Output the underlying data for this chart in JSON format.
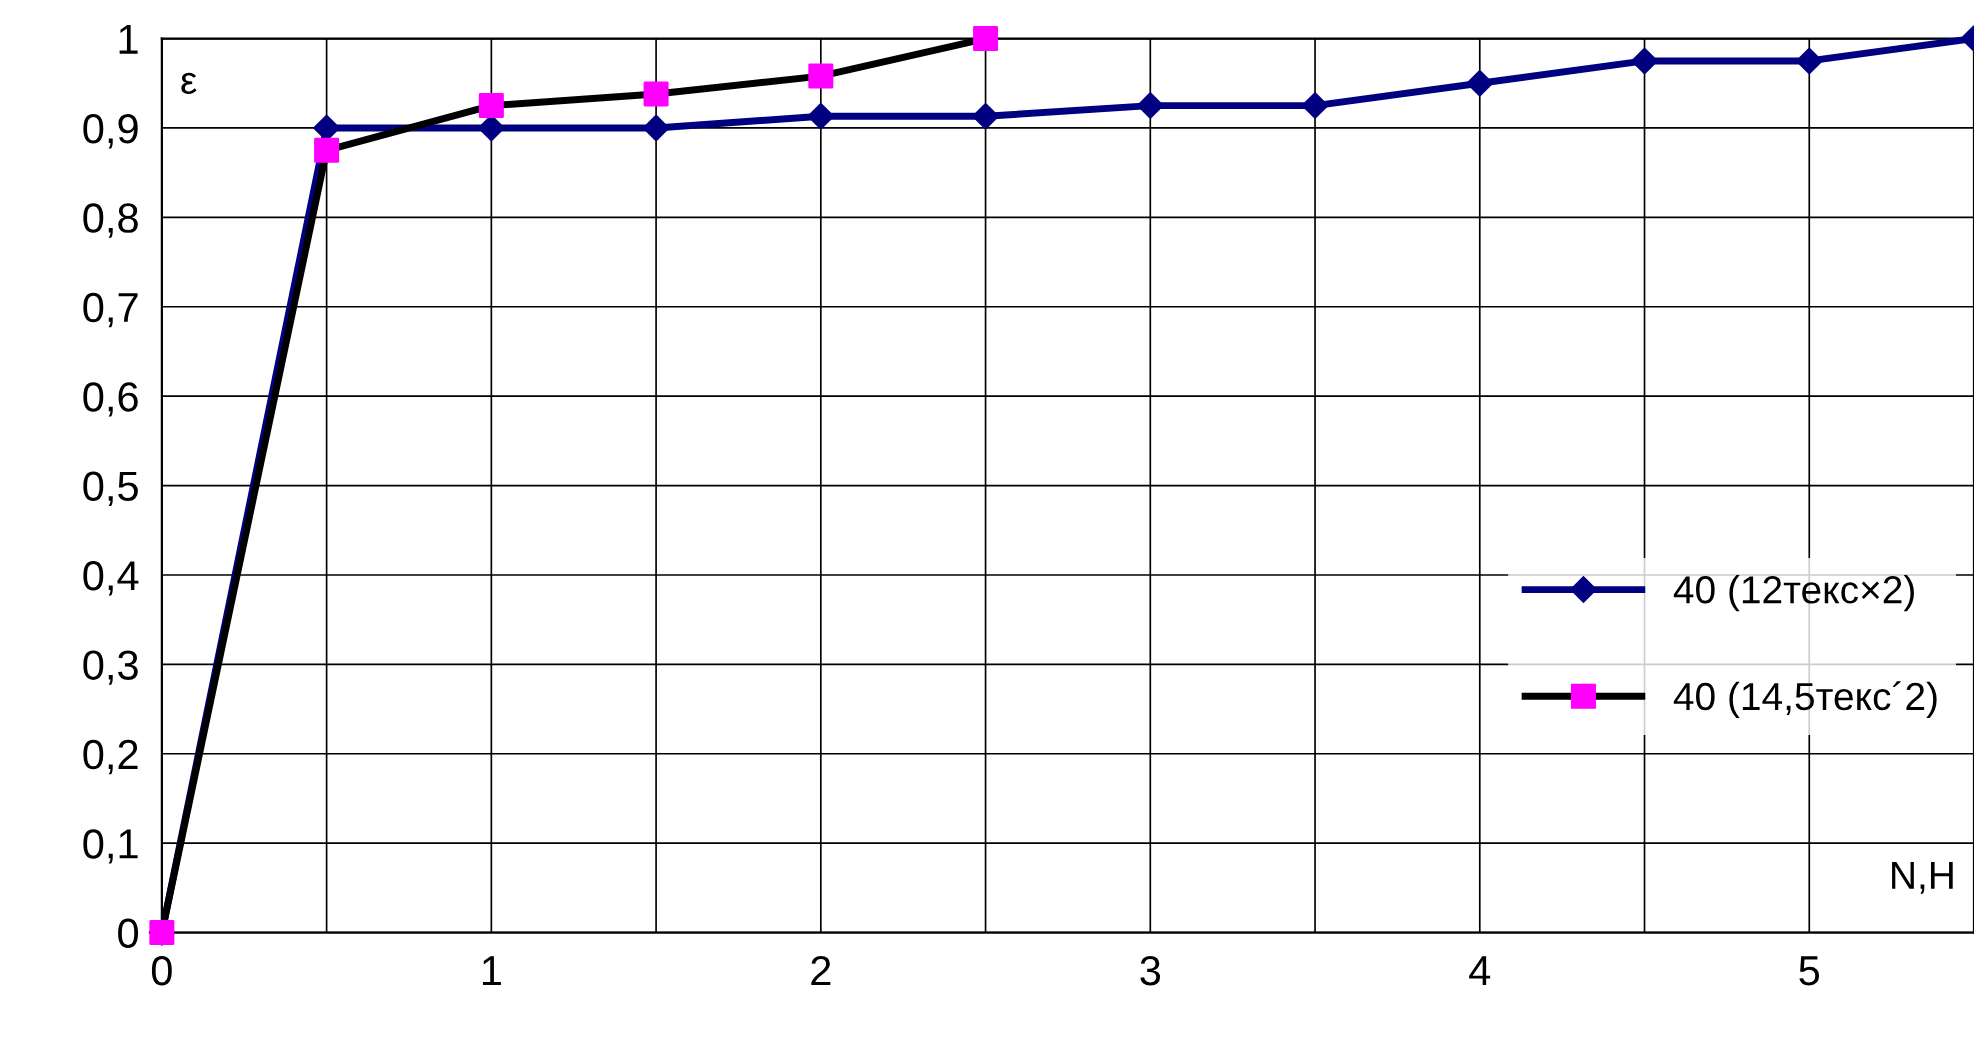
{
  "chart_data": {
    "type": "line",
    "xlabel": "N,H",
    "ylabel": "ε",
    "xlim": [
      0,
      5.5
    ],
    "ylim": [
      0,
      1
    ],
    "xticks": [
      0,
      {
        "value": 0.5,
        "label": null
      },
      1,
      {
        "value": 1.5,
        "label": null
      },
      2,
      {
        "value": 2.5,
        "label": null
      },
      3,
      {
        "value": 3.5,
        "label": null
      },
      4,
      {
        "value": 4.5,
        "label": null
      },
      5,
      {
        "value": 5.5,
        "label": null
      }
    ],
    "yticks": [
      0,
      {
        "value": 0.1,
        "label": "0,1"
      },
      {
        "value": 0.2,
        "label": "0,2"
      },
      {
        "value": 0.3,
        "label": "0,3"
      },
      {
        "value": 0.4,
        "label": "0,4"
      },
      {
        "value": 0.5,
        "label": "0,5"
      },
      {
        "value": 0.6,
        "label": "0,6"
      },
      {
        "value": 0.7,
        "label": "0,7"
      },
      {
        "value": 0.8,
        "label": "0,8"
      },
      {
        "value": 0.9,
        "label": "0,9"
      },
      1
    ],
    "grid": true,
    "legend": "right",
    "series": [
      {
        "name": "40 (12текс×2)",
        "color": "#000080",
        "marker": "diamond",
        "x": [
          0,
          0.5,
          1,
          1.5,
          2,
          2.5,
          3,
          3.5,
          4,
          4.5,
          5,
          5.5
        ],
        "values": [
          0,
          0.9,
          0.9,
          0.9,
          0.913,
          0.913,
          0.925,
          0.925,
          0.95,
          0.975,
          0.975,
          1.0
        ]
      },
      {
        "name": "40 (14,5текс´2)",
        "color": "#000000",
        "colors": [
          "#ff00ff",
          "#ff00ff",
          "#ff00ff",
          "#ff00ff",
          "#ff00ff",
          "#ff00ff"
        ],
        "marker": "square",
        "x": [
          0,
          0.5,
          1,
          1.5,
          2,
          2.5
        ],
        "values": [
          0,
          0.875,
          0.925,
          0.938,
          0.958,
          1.0
        ]
      }
    ]
  }
}
